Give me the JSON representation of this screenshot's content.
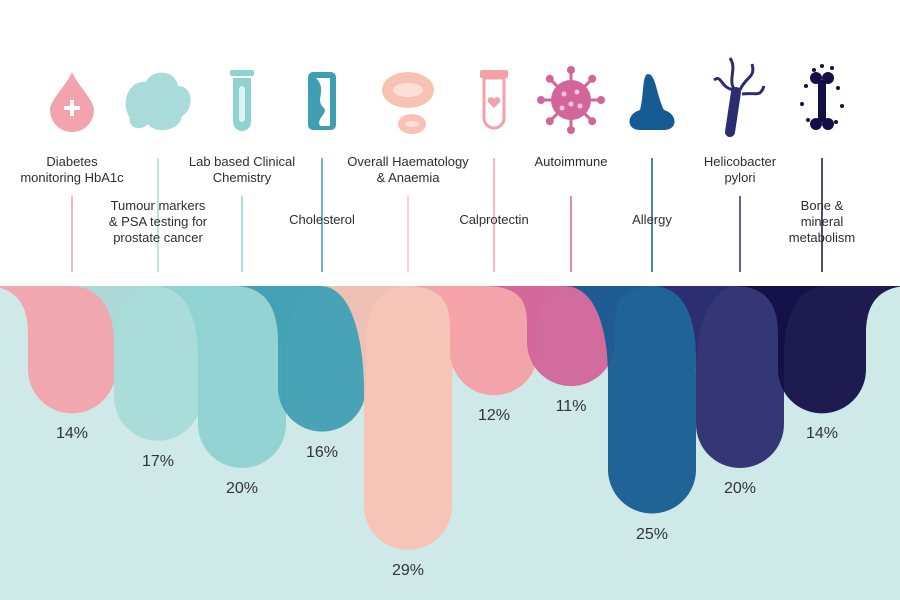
{
  "chart_data": {
    "type": "area",
    "title": "",
    "xlabel": "",
    "ylabel": "",
    "ylim": [
      0,
      30
    ],
    "grid": false,
    "legend": "none",
    "background_band_color": "#cfe8e8",
    "categories": [
      {
        "label": "Diabetes\nmonitoring HbA1c",
        "value": 14,
        "value_label": "14%",
        "color": "#f2a3ad",
        "icon": "blood-drop-icon"
      },
      {
        "label": "Tumour markers\n& PSA testing for\nprostate cancer",
        "value": 17,
        "value_label": "17%",
        "color": "#a8dbd9",
        "icon": "cloud-cell-icon"
      },
      {
        "label": "Lab based Clinical\nChemistry",
        "value": 20,
        "value_label": "20%",
        "color": "#8fd2d2",
        "icon": "test-tube-icon"
      },
      {
        "label": "Cholesterol",
        "value": 16,
        "value_label": "16%",
        "color": "#3f9fb2",
        "icon": "blocked-artery-icon"
      },
      {
        "label": "Overall Haematology\n& Anaemia",
        "value": 29,
        "value_label": "29%",
        "color": "#f8c3b5",
        "icon": "red-blood-cells-icon"
      },
      {
        "label": "Calprotectin",
        "value": 12,
        "value_label": "12%",
        "color": "#f4a0a8",
        "icon": "sample-tube-icon"
      },
      {
        "label": "Autoimmune",
        "value": 11,
        "value_label": "11%",
        "color": "#d2659a",
        "icon": "virus-icon"
      },
      {
        "label": "Allergy",
        "value": 25,
        "value_label": "25%",
        "color": "#155c92",
        "icon": "nose-icon"
      },
      {
        "label": "Helicobacter\npylori",
        "value": 20,
        "value_label": "20%",
        "color": "#2c2c70",
        "icon": "bacterium-icon"
      },
      {
        "label": "Bone &\nmineral\nmetabolism",
        "value": 14,
        "value_label": "14%",
        "color": "#131047",
        "icon": "bone-icon"
      }
    ]
  }
}
